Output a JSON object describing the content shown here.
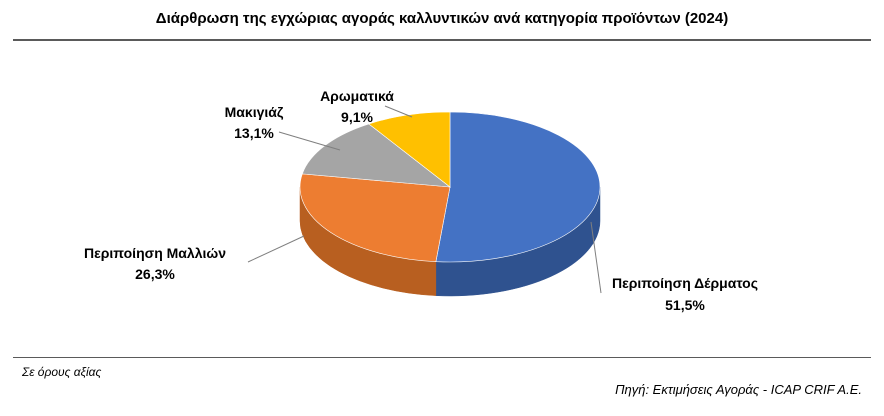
{
  "title": "Διάρθρωση της εγχώριας αγοράς καλλυντικών ανά κατηγορία προϊόντων (2024)",
  "note": "Σε όρους αξίας",
  "source": "Πηγή: Εκτιμήσεις Αγοράς - ICAP CRIF A.E.",
  "chart_data": {
    "type": "pie",
    "title": "Διάρθρωση της εγχώριας αγοράς καλλυντικών ανά κατηγορία προϊόντων (2024)",
    "unit": "%",
    "slices": [
      {
        "label": "Περιποίηση Δέρματος",
        "value": 51.5,
        "value_label": "51,5%",
        "color": "#4472C4",
        "dark": "#2F528F"
      },
      {
        "label": "Περιποίηση Μαλλιών",
        "value": 26.3,
        "value_label": "26,3%",
        "color": "#ED7D31",
        "dark": "#B85F20"
      },
      {
        "label": "Μακιγιάζ",
        "value": 13.1,
        "value_label": "13,1%",
        "color": "#A5A5A5",
        "dark": "#7F7F7F"
      },
      {
        "label": "Αρωματικά",
        "value": 9.1,
        "value_label": "9,1%",
        "color": "#FFC000",
        "dark": "#C79500"
      }
    ]
  }
}
